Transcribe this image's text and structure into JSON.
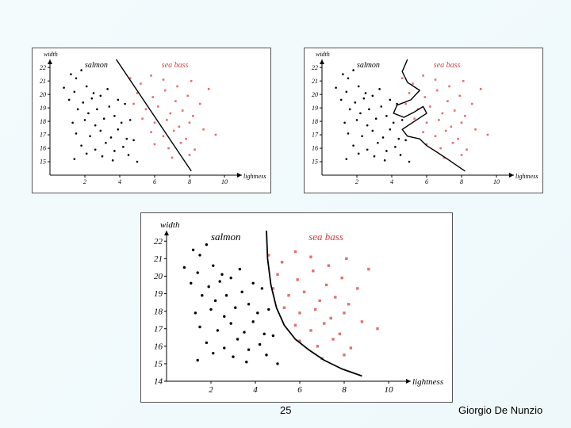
{
  "slide": {
    "page_number": "25",
    "author": "Giorgio De Nunzio"
  },
  "colors": {
    "salmon_points": "#000000",
    "seabass_points": "#e07070",
    "seabass_label": "#d04040",
    "boundary": "#000000"
  },
  "chart_data": [
    {
      "type": "scatter",
      "boundary_kind": "linear",
      "xlabel": "lightness",
      "ylabel": "width",
      "xlim": [
        0,
        11
      ],
      "ylim": [
        14,
        22.6
      ],
      "xticks": [
        2,
        4,
        6,
        8,
        10
      ],
      "yticks": [
        15,
        16,
        17,
        18,
        19,
        20,
        21,
        22
      ],
      "series": [
        {
          "name": "salmon",
          "points": [
            [
              1.2,
              21.5
            ],
            [
              1.5,
              21.2
            ],
            [
              1.8,
              21.8
            ],
            [
              0.8,
              20.5
            ],
            [
              1.4,
              20.2
            ],
            [
              2.1,
              20.6
            ],
            [
              2.5,
              20.1
            ],
            [
              1.1,
              19.6
            ],
            [
              1.9,
              19.4
            ],
            [
              2.4,
              19.7
            ],
            [
              2.9,
              19.9
            ],
            [
              3.3,
              20.4
            ],
            [
              1.6,
              18.9
            ],
            [
              2.2,
              18.6
            ],
            [
              2.7,
              18.9
            ],
            [
              3.4,
              19.1
            ],
            [
              3.9,
              19.6
            ],
            [
              4.3,
              19.3
            ],
            [
              1.3,
              17.9
            ],
            [
              2.0,
              18.1
            ],
            [
              2.6,
              17.7
            ],
            [
              3.1,
              18.2
            ],
            [
              3.7,
              18.4
            ],
            [
              4.1,
              17.9
            ],
            [
              4.6,
              18.1
            ],
            [
              1.5,
              17.1
            ],
            [
              2.3,
              16.9
            ],
            [
              2.9,
              17.3
            ],
            [
              3.5,
              16.8
            ],
            [
              3.9,
              17.4
            ],
            [
              4.4,
              16.7
            ],
            [
              1.8,
              16.2
            ],
            [
              2.6,
              15.9
            ],
            [
              3.2,
              16.4
            ],
            [
              3.7,
              15.8
            ],
            [
              4.2,
              16.1
            ],
            [
              4.8,
              16.6
            ],
            [
              1.4,
              15.2
            ],
            [
              2.1,
              15.6
            ],
            [
              3.0,
              15.4
            ],
            [
              3.6,
              15.1
            ],
            [
              4.5,
              15.5
            ],
            [
              5.0,
              15.0
            ]
          ]
        },
        {
          "name": "sea bass",
          "points": [
            [
              4.6,
              21.2
            ],
            [
              5.2,
              20.8
            ],
            [
              5.8,
              21.4
            ],
            [
              6.5,
              21.1
            ],
            [
              7.3,
              20.6
            ],
            [
              8.1,
              21.0
            ],
            [
              9.1,
              20.4
            ],
            [
              5.0,
              20.1
            ],
            [
              5.9,
              19.8
            ],
            [
              6.6,
              20.3
            ],
            [
              7.2,
              19.5
            ],
            [
              7.9,
              19.9
            ],
            [
              8.6,
              19.3
            ],
            [
              4.8,
              19.3
            ],
            [
              5.5,
              18.9
            ],
            [
              6.2,
              19.1
            ],
            [
              6.9,
              18.6
            ],
            [
              7.6,
              18.8
            ],
            [
              8.2,
              18.4
            ],
            [
              5.3,
              18.2
            ],
            [
              6.0,
              17.9
            ],
            [
              6.7,
              18.1
            ],
            [
              7.4,
              17.6
            ],
            [
              8.0,
              17.9
            ],
            [
              8.8,
              17.4
            ],
            [
              5.8,
              17.2
            ],
            [
              6.5,
              16.9
            ],
            [
              7.1,
              17.3
            ],
            [
              7.8,
              16.7
            ],
            [
              9.5,
              17.0
            ],
            [
              6.0,
              16.3
            ],
            [
              6.8,
              16.0
            ],
            [
              7.5,
              16.4
            ],
            [
              8.3,
              15.9
            ],
            [
              7.0,
              15.3
            ],
            [
              8.0,
              15.5
            ]
          ]
        }
      ],
      "boundary": [
        [
          3.8,
          22.6
        ],
        [
          8.1,
          14.3
        ]
      ]
    },
    {
      "type": "scatter",
      "boundary_kind": "complex",
      "xlabel": "lightness",
      "ylabel": "width",
      "xlim": [
        0,
        11
      ],
      "ylim": [
        14,
        22.6
      ],
      "xticks": [
        2,
        4,
        6,
        8,
        10
      ],
      "yticks": [
        15,
        16,
        17,
        18,
        19,
        20,
        21,
        22
      ],
      "series": [
        {
          "name": "salmon",
          "points": [
            [
              1.2,
              21.5
            ],
            [
              1.5,
              21.2
            ],
            [
              1.8,
              21.8
            ],
            [
              0.8,
              20.5
            ],
            [
              1.4,
              20.2
            ],
            [
              2.1,
              20.6
            ],
            [
              2.5,
              20.1
            ],
            [
              1.1,
              19.6
            ],
            [
              1.9,
              19.4
            ],
            [
              2.4,
              19.7
            ],
            [
              2.9,
              19.9
            ],
            [
              3.3,
              20.4
            ],
            [
              1.6,
              18.9
            ],
            [
              2.2,
              18.6
            ],
            [
              2.7,
              18.9
            ],
            [
              3.4,
              19.1
            ],
            [
              3.9,
              19.6
            ],
            [
              4.3,
              19.3
            ],
            [
              1.3,
              17.9
            ],
            [
              2.0,
              18.1
            ],
            [
              2.6,
              17.7
            ],
            [
              3.1,
              18.2
            ],
            [
              3.7,
              18.4
            ],
            [
              4.1,
              17.9
            ],
            [
              4.6,
              18.1
            ],
            [
              1.5,
              17.1
            ],
            [
              2.3,
              16.9
            ],
            [
              2.9,
              17.3
            ],
            [
              3.5,
              16.8
            ],
            [
              3.9,
              17.4
            ],
            [
              4.4,
              16.7
            ],
            [
              1.8,
              16.2
            ],
            [
              2.6,
              15.9
            ],
            [
              3.2,
              16.4
            ],
            [
              3.7,
              15.8
            ],
            [
              4.2,
              16.1
            ],
            [
              4.8,
              16.6
            ],
            [
              1.4,
              15.2
            ],
            [
              2.1,
              15.6
            ],
            [
              3.0,
              15.4
            ],
            [
              3.6,
              15.1
            ],
            [
              4.5,
              15.5
            ],
            [
              5.0,
              15.0
            ]
          ]
        },
        {
          "name": "sea bass",
          "points": [
            [
              4.6,
              21.2
            ],
            [
              5.2,
              20.8
            ],
            [
              5.8,
              21.4
            ],
            [
              6.5,
              21.1
            ],
            [
              7.3,
              20.6
            ],
            [
              8.1,
              21.0
            ],
            [
              9.1,
              20.4
            ],
            [
              5.0,
              20.1
            ],
            [
              5.9,
              19.8
            ],
            [
              6.6,
              20.3
            ],
            [
              7.2,
              19.5
            ],
            [
              7.9,
              19.9
            ],
            [
              8.6,
              19.3
            ],
            [
              4.8,
              19.3
            ],
            [
              5.5,
              18.9
            ],
            [
              6.2,
              19.1
            ],
            [
              6.9,
              18.6
            ],
            [
              7.6,
              18.8
            ],
            [
              8.2,
              18.4
            ],
            [
              5.3,
              18.2
            ],
            [
              6.0,
              17.9
            ],
            [
              6.7,
              18.1
            ],
            [
              7.4,
              17.6
            ],
            [
              8.0,
              17.9
            ],
            [
              8.8,
              17.4
            ],
            [
              5.8,
              17.2
            ],
            [
              6.5,
              16.9
            ],
            [
              7.1,
              17.3
            ],
            [
              7.8,
              16.7
            ],
            [
              9.5,
              17.0
            ],
            [
              6.0,
              16.3
            ],
            [
              6.8,
              16.0
            ],
            [
              7.5,
              16.4
            ],
            [
              8.3,
              15.9
            ],
            [
              7.0,
              15.3
            ],
            [
              8.0,
              15.5
            ]
          ]
        }
      ],
      "boundary": [
        [
          4.9,
          22.6
        ],
        [
          4.6,
          21.7
        ],
        [
          4.9,
          20.9
        ],
        [
          5.6,
          20.3
        ],
        [
          5.1,
          19.6
        ],
        [
          4.3,
          19.2
        ],
        [
          4.1,
          18.6
        ],
        [
          4.7,
          18.3
        ],
        [
          5.3,
          18.7
        ],
        [
          5.8,
          19.1
        ],
        [
          6.0,
          18.6
        ],
        [
          5.3,
          18.0
        ],
        [
          4.6,
          17.4
        ],
        [
          4.9,
          16.9
        ],
        [
          5.6,
          16.7
        ],
        [
          6.0,
          16.2
        ],
        [
          6.6,
          15.7
        ],
        [
          7.3,
          15.1
        ],
        [
          8.2,
          14.3
        ]
      ]
    },
    {
      "type": "scatter",
      "boundary_kind": "smooth-curve",
      "xlabel": "lightness",
      "ylabel": "width",
      "xlim": [
        0,
        11
      ],
      "ylim": [
        14,
        22.6
      ],
      "xticks": [
        2,
        4,
        6,
        8,
        10
      ],
      "yticks": [
        14,
        15,
        16,
        17,
        18,
        19,
        20,
        21,
        22
      ],
      "series": [
        {
          "name": "salmon",
          "points": [
            [
              1.2,
              21.5
            ],
            [
              1.5,
              21.2
            ],
            [
              1.8,
              21.8
            ],
            [
              0.8,
              20.5
            ],
            [
              1.4,
              20.2
            ],
            [
              2.1,
              20.6
            ],
            [
              2.5,
              20.1
            ],
            [
              1.1,
              19.6
            ],
            [
              1.9,
              19.4
            ],
            [
              2.4,
              19.7
            ],
            [
              2.9,
              19.9
            ],
            [
              3.3,
              20.4
            ],
            [
              1.6,
              18.9
            ],
            [
              2.2,
              18.6
            ],
            [
              2.7,
              18.9
            ],
            [
              3.4,
              19.1
            ],
            [
              3.9,
              19.6
            ],
            [
              4.3,
              19.3
            ],
            [
              1.3,
              17.9
            ],
            [
              2.0,
              18.1
            ],
            [
              2.6,
              17.7
            ],
            [
              3.1,
              18.2
            ],
            [
              3.7,
              18.4
            ],
            [
              4.1,
              17.9
            ],
            [
              4.6,
              18.1
            ],
            [
              1.5,
              17.1
            ],
            [
              2.3,
              16.9
            ],
            [
              2.9,
              17.3
            ],
            [
              3.5,
              16.8
            ],
            [
              3.9,
              17.4
            ],
            [
              4.4,
              16.7
            ],
            [
              1.8,
              16.2
            ],
            [
              2.6,
              15.9
            ],
            [
              3.2,
              16.4
            ],
            [
              3.7,
              15.8
            ],
            [
              4.2,
              16.1
            ],
            [
              4.8,
              16.6
            ],
            [
              1.4,
              15.2
            ],
            [
              2.1,
              15.6
            ],
            [
              3.0,
              15.4
            ],
            [
              3.6,
              15.1
            ],
            [
              4.5,
              15.5
            ],
            [
              5.0,
              15.0
            ]
          ]
        },
        {
          "name": "sea bass",
          "points": [
            [
              4.6,
              21.2
            ],
            [
              5.2,
              20.8
            ],
            [
              5.8,
              21.4
            ],
            [
              6.5,
              21.1
            ],
            [
              7.3,
              20.6
            ],
            [
              8.1,
              21.0
            ],
            [
              9.1,
              20.4
            ],
            [
              5.0,
              20.1
            ],
            [
              5.9,
              19.8
            ],
            [
              6.6,
              20.3
            ],
            [
              7.2,
              19.5
            ],
            [
              7.9,
              19.9
            ],
            [
              8.6,
              19.3
            ],
            [
              4.8,
              19.3
            ],
            [
              5.5,
              18.9
            ],
            [
              6.2,
              19.1
            ],
            [
              6.9,
              18.6
            ],
            [
              7.6,
              18.8
            ],
            [
              8.2,
              18.4
            ],
            [
              5.3,
              18.2
            ],
            [
              6.0,
              17.9
            ],
            [
              6.7,
              18.1
            ],
            [
              7.4,
              17.6
            ],
            [
              8.0,
              17.9
            ],
            [
              8.8,
              17.4
            ],
            [
              5.8,
              17.2
            ],
            [
              6.5,
              16.9
            ],
            [
              7.1,
              17.3
            ],
            [
              7.8,
              16.7
            ],
            [
              9.5,
              17.0
            ],
            [
              6.0,
              16.3
            ],
            [
              6.8,
              16.0
            ],
            [
              7.5,
              16.4
            ],
            [
              8.3,
              15.9
            ],
            [
              7.0,
              15.3
            ],
            [
              8.0,
              15.5
            ]
          ]
        }
      ],
      "boundary": [
        [
          4.5,
          22.6
        ],
        [
          4.55,
          21.0
        ],
        [
          4.7,
          19.5
        ],
        [
          4.95,
          18.2
        ],
        [
          5.3,
          17.2
        ],
        [
          5.8,
          16.4
        ],
        [
          6.4,
          15.8
        ],
        [
          7.1,
          15.2
        ],
        [
          7.9,
          14.7
        ],
        [
          8.8,
          14.3
        ]
      ]
    }
  ]
}
